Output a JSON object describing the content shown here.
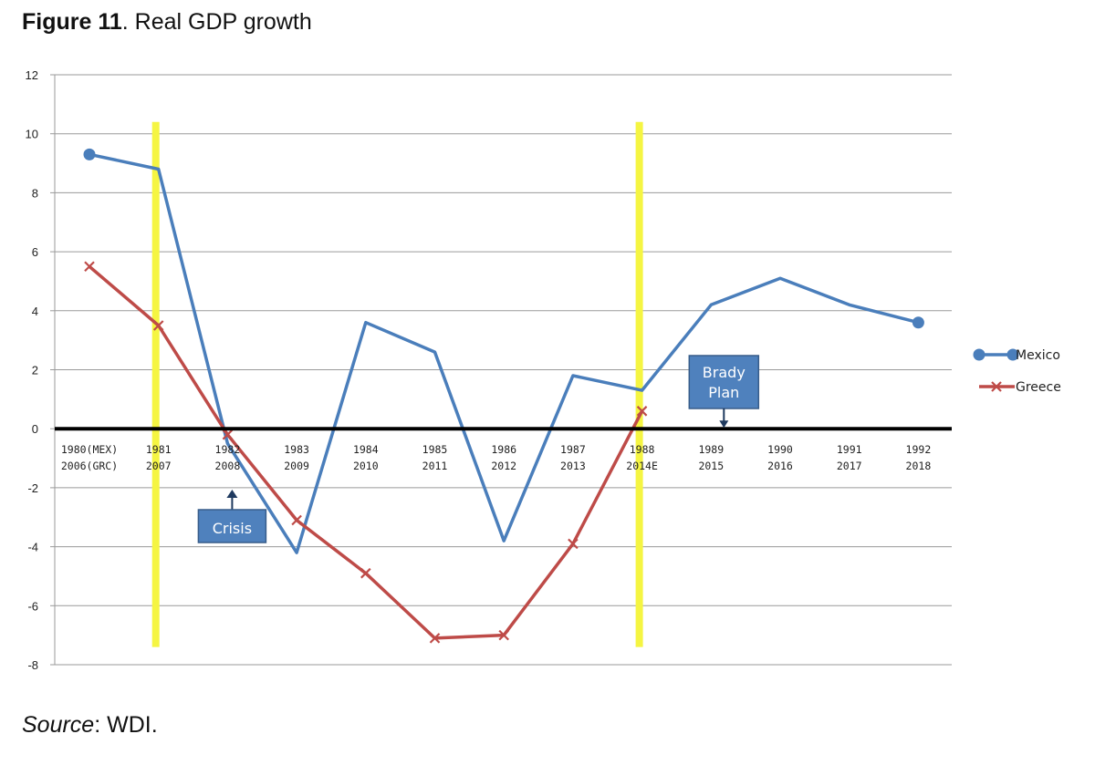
{
  "figure": {
    "label": "Figure 11",
    "caption": ". Real GDP growth",
    "source_label": "Source",
    "source_text": ": WDI."
  },
  "chart_data": {
    "type": "line",
    "title": "Real GDP growth",
    "categories": [
      [
        "1980(MEX)",
        "2006(GRC)"
      ],
      [
        "1981",
        "2007"
      ],
      [
        "1982",
        "2008"
      ],
      [
        "1983",
        "2009"
      ],
      [
        "1984",
        "2010"
      ],
      [
        "1985",
        "2011"
      ],
      [
        "1986",
        "2012"
      ],
      [
        "1987",
        "2013"
      ],
      [
        "1988",
        "2014E"
      ],
      [
        "1989",
        "2015"
      ],
      [
        "1990",
        "2016"
      ],
      [
        "1991",
        "2017"
      ],
      [
        "1992",
        "2018"
      ]
    ],
    "series": [
      {
        "name": "Mexico",
        "color": "#4a7ebb",
        "marker": "circle",
        "values": [
          9.3,
          8.8,
          -0.5,
          -4.2,
          3.6,
          2.6,
          -3.8,
          1.8,
          1.3,
          4.2,
          5.1,
          4.2,
          3.6
        ]
      },
      {
        "name": "Greece",
        "color": "#be4b48",
        "marker": "x",
        "values": [
          5.5,
          3.5,
          -0.2,
          -3.1,
          -4.9,
          -7.1,
          -7.0,
          -3.9,
          0.6,
          null,
          null,
          null,
          null
        ]
      }
    ],
    "ylim": [
      -8,
      12
    ],
    "yticks": [
      12,
      10,
      8,
      6,
      4,
      2,
      0,
      -2,
      -4,
      -6,
      -8
    ],
    "grid": true,
    "legend_position": "right",
    "vertical_markers": [
      {
        "category_index": 1,
        "color": "#f5f542"
      },
      {
        "category_index": 8,
        "color": "#f5f542"
      }
    ],
    "annotations": [
      {
        "text_lines": [
          "Crisis"
        ],
        "category_index": 2,
        "points_to": 0,
        "arrow": "up"
      },
      {
        "text_lines": [
          "Brady",
          "Plan"
        ],
        "category_index": 9,
        "points_to": 0,
        "arrow": "down"
      }
    ]
  }
}
